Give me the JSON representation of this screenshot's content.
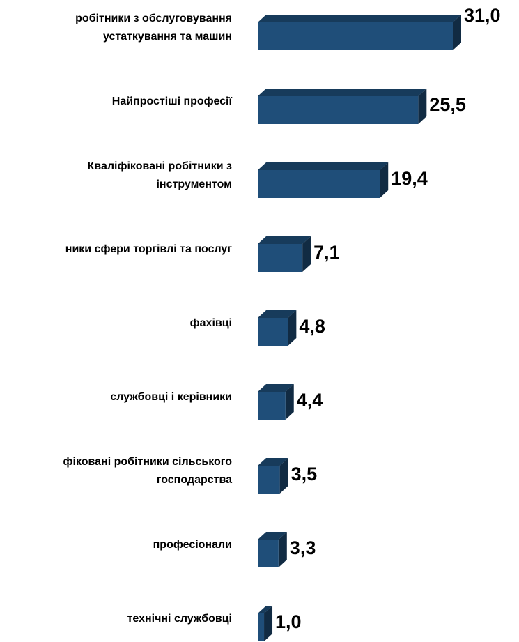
{
  "chart_data": {
    "type": "bar",
    "orientation": "horizontal",
    "categories": [
      [
        "робітники з обслуговування",
        "устаткування та машин"
      ],
      [
        "Найпростіші професії"
      ],
      [
        "Кваліфіковані робітники з",
        "інструментом"
      ],
      [
        "ники сфери торгівлі та послуг"
      ],
      [
        "фахівці"
      ],
      [
        "службовці і керівники"
      ],
      [
        "фіковані робітники сільського",
        "господарства"
      ],
      [
        "професіонали"
      ],
      [
        "технічні службовці"
      ]
    ],
    "values": [
      31.0,
      25.5,
      19.4,
      7.1,
      4.8,
      4.4,
      3.5,
      3.3,
      1.0
    ],
    "value_labels": [
      "31,0",
      "25,5",
      "19,4",
      "7,1",
      "4,8",
      "4,4",
      "3,5",
      "3,3",
      "1,0"
    ],
    "color": "#1f4e79"
  }
}
